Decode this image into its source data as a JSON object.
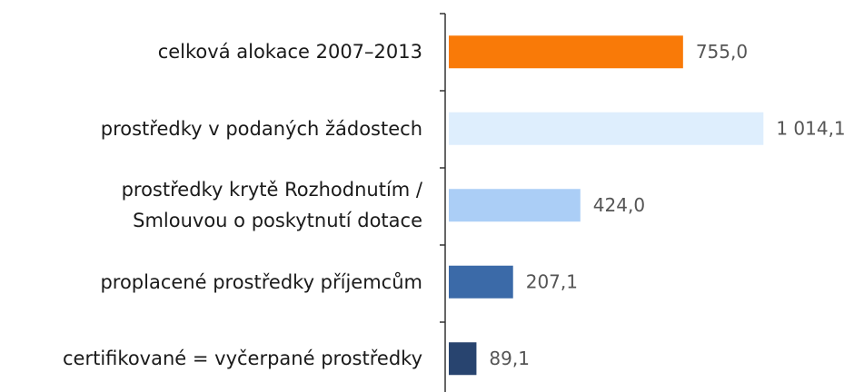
{
  "chart_data": {
    "type": "bar",
    "orientation": "horizontal",
    "categories": [
      "celková alokace 2007–2013",
      "prostředky v podaných žádostech",
      "prostředky krytě Rozhodnutím  /\nSmlouvou o poskytnutí  dotace",
      "proplacené prostředky příjemcům",
      "certifikované = vyčerpané prostředky"
    ],
    "values": [
      755.0,
      1014.1,
      424.0,
      207.1,
      89.1
    ],
    "value_labels": [
      "755,0",
      "1 014,1",
      "424,0",
      "207,1",
      "89,1"
    ],
    "colors": [
      "#f97a08",
      "#deeefd",
      "#abcef6",
      "#3b6aa8",
      "#28446f"
    ]
  }
}
